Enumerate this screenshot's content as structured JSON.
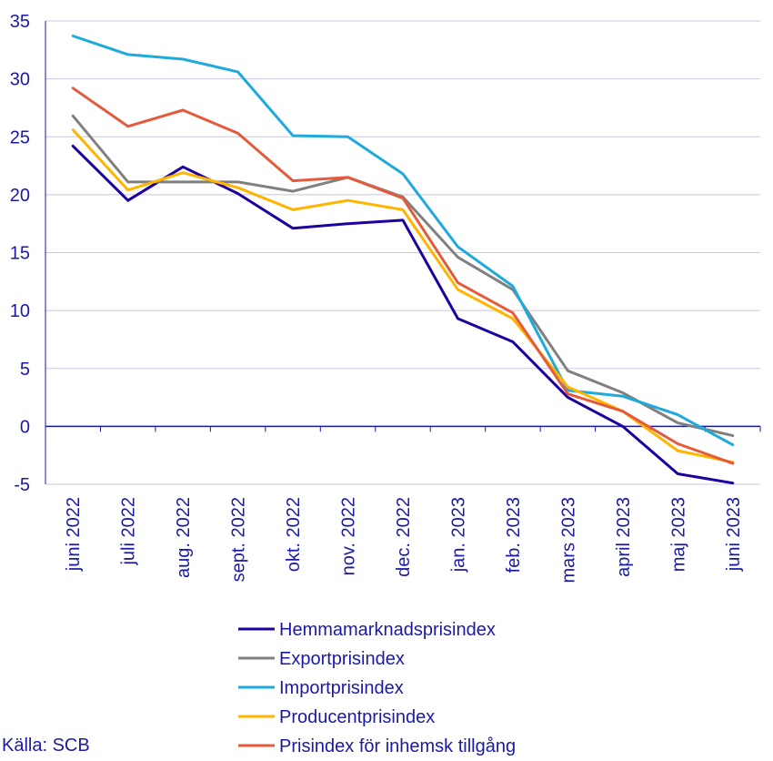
{
  "chart_data": {
    "type": "line",
    "title": "",
    "xlabel": "",
    "ylabel": "",
    "ylim": [
      -5,
      35
    ],
    "yticks": [
      -5,
      0,
      5,
      10,
      15,
      20,
      25,
      30,
      35
    ],
    "ytick_labels": [
      "-5",
      "0",
      "5",
      "10",
      "15",
      "20",
      "25",
      "30",
      "35"
    ],
    "grid": true,
    "legend_position": "bottom",
    "categories": [
      "juni 2022",
      "juli 2022",
      "aug. 2022",
      "sept. 2022",
      "okt. 2022",
      "nov. 2022",
      "dec. 2022",
      "jan. 2023",
      "feb. 2023",
      "mars 2023",
      "april 2023",
      "maj 2023",
      "juni 2023"
    ],
    "series": [
      {
        "name": "Hemmamarknadsprisindex",
        "color": "#1e00a0",
        "values": [
          24.2,
          19.5,
          22.4,
          20.1,
          17.1,
          17.5,
          17.8,
          9.3,
          7.3,
          2.5,
          0.0,
          -4.1,
          -4.9
        ]
      },
      {
        "name": "Exportprisindex",
        "color": "#808080",
        "values": [
          26.8,
          21.1,
          21.1,
          21.1,
          20.3,
          21.5,
          19.8,
          14.6,
          11.8,
          4.8,
          2.9,
          0.3,
          -0.8
        ]
      },
      {
        "name": "Importprisindex",
        "color": "#1eaadc",
        "values": [
          33.7,
          32.1,
          31.7,
          30.6,
          25.1,
          25.0,
          21.8,
          15.5,
          12.1,
          3.1,
          2.6,
          1.0,
          -1.6
        ]
      },
      {
        "name": "Producentprisindex",
        "color": "#ffb400",
        "values": [
          25.6,
          20.4,
          21.9,
          20.6,
          18.7,
          19.5,
          18.7,
          11.8,
          9.3,
          3.4,
          1.3,
          -2.1,
          -3.1
        ]
      },
      {
        "name": "Prisindex för inhemsk tillgång",
        "color": "#e65a3c",
        "values": [
          29.2,
          25.9,
          27.3,
          25.3,
          21.2,
          21.5,
          19.7,
          12.4,
          9.8,
          2.8,
          1.3,
          -1.5,
          -3.2
        ]
      }
    ]
  },
  "source": "Källa: SCB"
}
